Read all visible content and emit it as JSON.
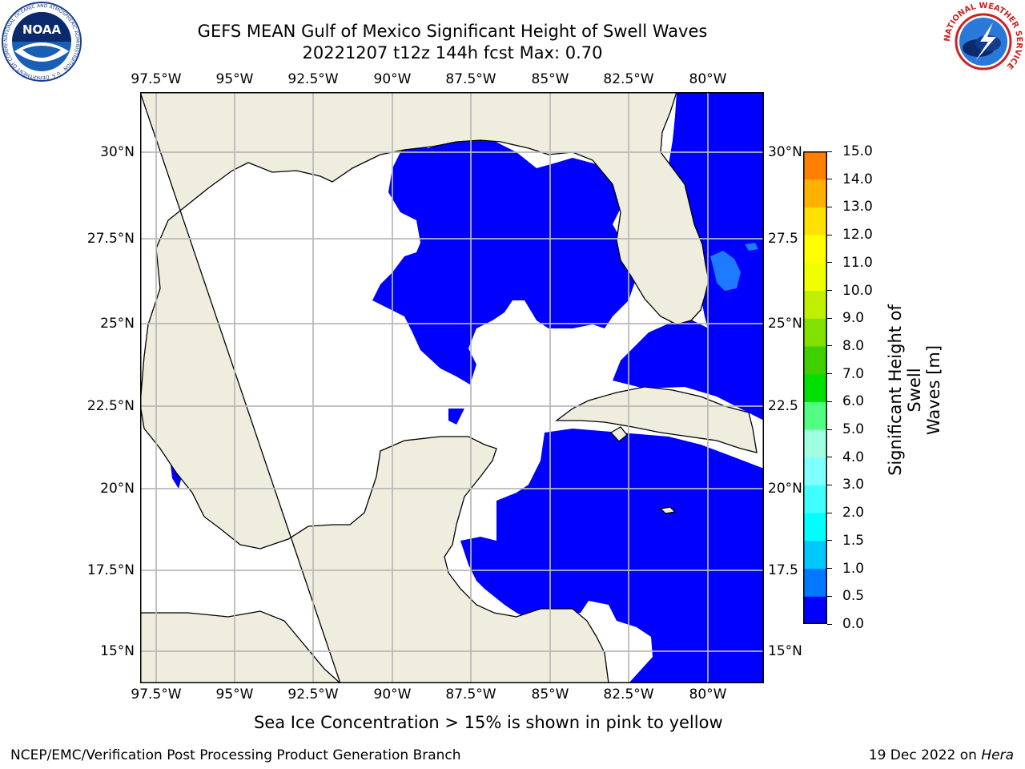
{
  "title_line1": "GEFS MEAN Gulf of Mexico Significant Height of Swell Waves",
  "title_line2": "20221207 t12z 144h fcst   Max: 0.70",
  "lon_ticks": [
    "97.5°W",
    "95°W",
    "92.5°W",
    "90°W",
    "87.5°W",
    "85°W",
    "82.5°W",
    "80°W"
  ],
  "lat_ticks": [
    "30°N",
    "27.5°N",
    "25°N",
    "22.5°N",
    "20°N",
    "17.5°N",
    "15°N"
  ],
  "lat_ticks_right": [
    "30°N",
    "27.5",
    "25°N",
    "22.5",
    "20°N",
    "17.5",
    "15°N"
  ],
  "colorbar": {
    "label_line1": "Significant Height of Swell",
    "label_line2": "Waves [m]",
    "ticks": [
      "15.0",
      "14.0",
      "13.0",
      "12.0",
      "11.0",
      "10.0",
      "9.0",
      "8.0",
      "7.0",
      "6.0",
      "5.0",
      "4.0",
      "3.0",
      "2.0",
      "1.5",
      "1.0",
      "0.5",
      "0.0"
    ],
    "colors": [
      "#0000ff",
      "#0078ff",
      "#00c8ff",
      "#00ffff",
      "#40ffff",
      "#80ffff",
      "#a0ffe0",
      "#50ff80",
      "#00e000",
      "#40d000",
      "#80e000",
      "#c0f000",
      "#f0ff00",
      "#ffff00",
      "#ffe000",
      "#ffb000",
      "#ff8000",
      "#ff5000",
      "#ff2000",
      "#ff0000"
    ]
  },
  "colors": {
    "land": "#efedde",
    "swell_low": "#0000ff",
    "swell_mid": "#1e7aff",
    "grid": "#b8b8b8"
  },
  "footnote": "Sea Ice Concentration > 15% is shown in pink to yellow",
  "footer_left": "NCEP/EMC/Verification Post Processing Product Generation Branch",
  "footer_date": "19 Dec 2022 on ",
  "footer_machine": "Hera",
  "logos": {
    "noaa_text": "NOAA",
    "noaa_ring": "NATIONAL OCEANIC AND ATMOSPHERIC ADMINISTRATION · U.S. DEPARTMENT OF COMMERCE",
    "nws_ring": "NATIONAL WEATHER SERVICE"
  }
}
